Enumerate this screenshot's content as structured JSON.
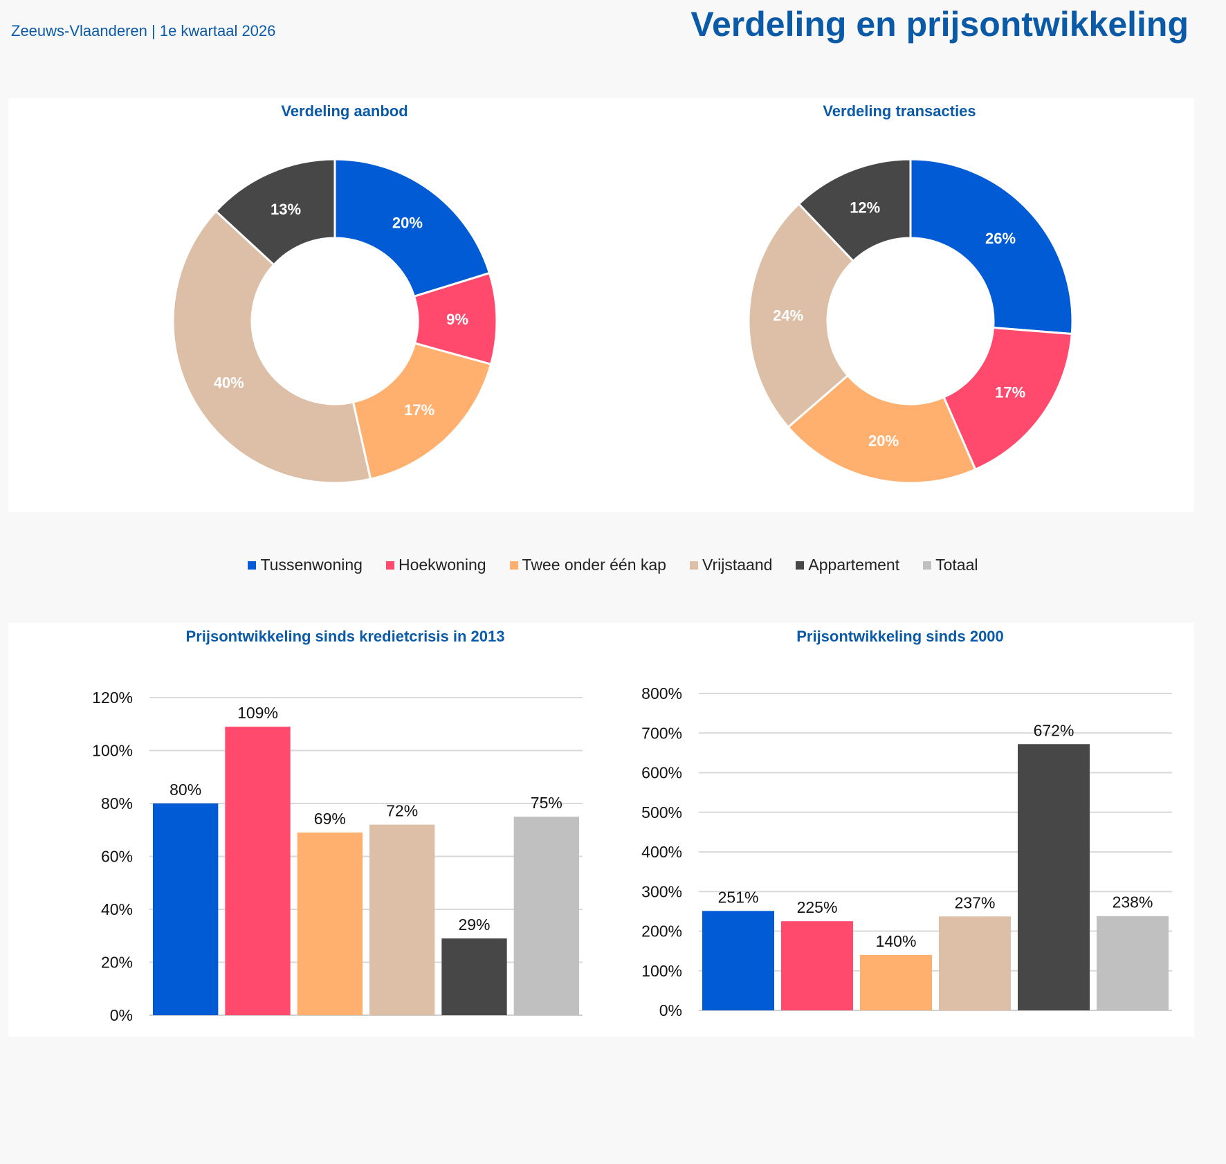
{
  "header": {
    "subtitle": "Zeeuws-Vlaanderen | 1e kwartaal 2026",
    "title": "Verdeling en prijsontwikkeling"
  },
  "colors": {
    "Tussenwoning": "#005bd4",
    "Hoekwoning": "#ff4a6e",
    "Twee onder één kap": "#ffb06e",
    "Vrijstaand": "#dcbfa6",
    "Appartement": "#474747",
    "Totaal": "#c0c0c0"
  },
  "legend": {
    "items": [
      "Tussenwoning",
      "Hoekwoning",
      "Twee onder één kap",
      "Vrijstaand",
      "Appartement",
      "Totaal"
    ]
  },
  "chart_data": [
    {
      "type": "pie",
      "title": "Verdeling aanbod",
      "categories": [
        "Tussenwoning",
        "Hoekwoning",
        "Twee onder één kap",
        "Vrijstaand",
        "Appartement"
      ],
      "values": [
        20,
        9,
        17,
        40,
        13
      ],
      "labels": [
        "20%",
        "9%",
        "17%",
        "40%",
        "13%"
      ],
      "donut": true
    },
    {
      "type": "pie",
      "title": "Verdeling transacties",
      "categories": [
        "Tussenwoning",
        "Hoekwoning",
        "Twee onder één kap",
        "Vrijstaand",
        "Appartement"
      ],
      "values": [
        26,
        17,
        20,
        24,
        12
      ],
      "labels": [
        "26%",
        "17%",
        "20%",
        "24%",
        "12%"
      ],
      "donut": true
    },
    {
      "type": "bar",
      "title": "Prijsontwikkeling sinds kredietcrisis in 2013",
      "categories": [
        "Tussenwoning",
        "Hoekwoning",
        "Twee onder één kap",
        "Vrijstaand",
        "Appartement",
        "Totaal"
      ],
      "values": [
        80,
        109,
        69,
        72,
        29,
        75
      ],
      "labels": [
        "80%",
        "109%",
        "69%",
        "72%",
        "29%",
        "75%"
      ],
      "ylim": [
        0,
        120
      ],
      "yticks": [
        0,
        20,
        40,
        60,
        80,
        100,
        120
      ],
      "ytick_labels": [
        "0%",
        "20%",
        "40%",
        "60%",
        "80%",
        "100%",
        "120%"
      ],
      "grid": true
    },
    {
      "type": "bar",
      "title": "Prijsontwikkeling sinds 2000",
      "categories": [
        "Tussenwoning",
        "Hoekwoning",
        "Twee onder één kap",
        "Vrijstaand",
        "Appartement",
        "Totaal"
      ],
      "values": [
        251,
        225,
        140,
        237,
        672,
        238
      ],
      "labels": [
        "251%",
        "225%",
        "140%",
        "237%",
        "672%",
        "238%"
      ],
      "ylim": [
        0,
        800
      ],
      "yticks": [
        0,
        100,
        200,
        300,
        400,
        500,
        600,
        700,
        800
      ],
      "ytick_labels": [
        "0%",
        "100%",
        "200%",
        "300%",
        "400%",
        "500%",
        "600%",
        "700%",
        "800%"
      ],
      "grid": true
    }
  ]
}
